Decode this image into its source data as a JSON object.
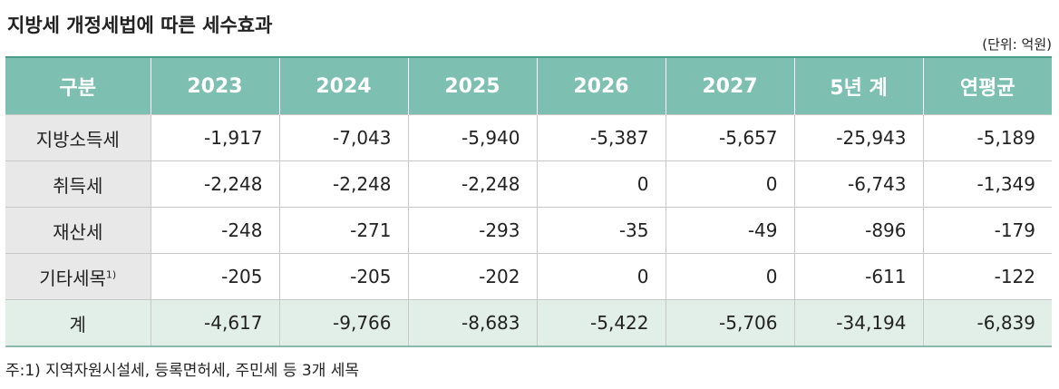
{
  "header": {
    "title": "지방세 개정세법에 따른 세수효과",
    "unit": "(단위: 억원)"
  },
  "table": {
    "columns": [
      "구분",
      "2023",
      "2024",
      "2025",
      "2026",
      "2027",
      "5년 계",
      "연평균"
    ],
    "rows": [
      {
        "label": "지방소득세",
        "cells": [
          "-1,917",
          "-7,043",
          "-5,940",
          "-5,387",
          "-5,657",
          "-25,943",
          "-5,189"
        ]
      },
      {
        "label": "취득세",
        "cells": [
          "-2,248",
          "-2,248",
          "-2,248",
          "0",
          "0",
          "-6,743",
          "-1,349"
        ]
      },
      {
        "label": "재산세",
        "cells": [
          "-248",
          "-271",
          "-293",
          "-35",
          "-49",
          "-896",
          "-179"
        ]
      },
      {
        "label": "기타세목",
        "note": "1)",
        "cells": [
          "-205",
          "-205",
          "-202",
          "0",
          "0",
          "-611",
          "-122"
        ]
      },
      {
        "label": "계",
        "cells": [
          "-4,617",
          "-9,766",
          "-8,683",
          "-5,422",
          "-5,706",
          "-34,194",
          "-6,839"
        ]
      }
    ]
  },
  "footnote": "주:1) 지역자원시설세, 등록면허세, 주민세 등 3개 세목"
}
